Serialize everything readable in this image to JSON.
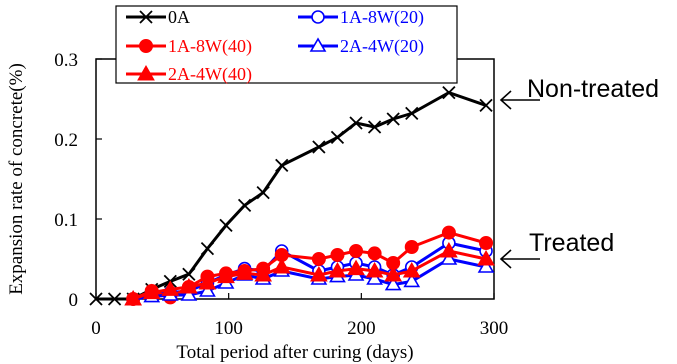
{
  "chart_data": {
    "type": "line",
    "title": "",
    "xlabel": "Total period after curing (days)",
    "ylabel": "Expansion rate of concrete(%)",
    "xlim": [
      0,
      300
    ],
    "ylim": [
      0,
      0.3
    ],
    "xticks": [
      0,
      100,
      200,
      300
    ],
    "xtick_labels": [
      "0",
      "100",
      "200",
      "300"
    ],
    "yticks": [
      0,
      0.1,
      0.2,
      0.3
    ],
    "ytick_labels": [
      "0",
      "0.1",
      "0.2",
      "0.3"
    ],
    "grid": false,
    "legend_position": "top-inside",
    "series": [
      {
        "name": "0A",
        "color": "#000000",
        "marker": "x",
        "x": [
          0,
          14,
          28,
          42,
          56,
          70,
          84,
          98,
          112,
          126,
          140,
          168,
          182,
          196,
          210,
          224,
          238,
          266,
          294
        ],
        "y": [
          0,
          0,
          0,
          0.012,
          0.022,
          0.031,
          0.063,
          0.092,
          0.117,
          0.133,
          0.167,
          0.19,
          0.202,
          0.22,
          0.215,
          0.225,
          0.232,
          0.258,
          0.242
        ]
      },
      {
        "name": "1A-8W(20)",
        "color": "#0000ff",
        "marker": "circle-open",
        "x": [
          28,
          42,
          56,
          70,
          84,
          98,
          112,
          126,
          140,
          168,
          182,
          196,
          210,
          224,
          238,
          266,
          294
        ],
        "y": [
          0,
          0.005,
          0.008,
          0.01,
          0.02,
          0.03,
          0.038,
          0.035,
          0.06,
          0.035,
          0.04,
          0.045,
          0.04,
          0.03,
          0.04,
          0.07,
          0.06
        ]
      },
      {
        "name": "1A-8W(40)",
        "color": "#ff0000",
        "marker": "circle-filled",
        "x": [
          28,
          42,
          56,
          70,
          84,
          98,
          112,
          126,
          140,
          168,
          182,
          196,
          210,
          224,
          238,
          266,
          294
        ],
        "y": [
          0,
          0.01,
          0.002,
          0.015,
          0.028,
          0.032,
          0.035,
          0.038,
          0.055,
          0.05,
          0.055,
          0.06,
          0.057,
          0.045,
          0.065,
          0.083,
          0.07
        ]
      },
      {
        "name": "2A-4W(20)",
        "color": "#0000ff",
        "marker": "triangle-open",
        "x": [
          28,
          42,
          56,
          70,
          84,
          98,
          112,
          126,
          140,
          168,
          182,
          196,
          210,
          224,
          238,
          266,
          294
        ],
        "y": [
          0,
          0.003,
          0.005,
          0.005,
          0.01,
          0.02,
          0.03,
          0.025,
          0.035,
          0.025,
          0.028,
          0.03,
          0.025,
          0.018,
          0.022,
          0.05,
          0.04
        ]
      },
      {
        "name": "2A-4W(40)",
        "color": "#ff0000",
        "marker": "triangle-filled",
        "x": [
          28,
          42,
          56,
          70,
          84,
          98,
          112,
          126,
          140,
          168,
          182,
          196,
          210,
          224,
          238,
          266,
          294
        ],
        "y": [
          0,
          0.008,
          0.012,
          0.015,
          0.02,
          0.028,
          0.032,
          0.03,
          0.04,
          0.03,
          0.035,
          0.038,
          0.035,
          0.03,
          0.035,
          0.06,
          0.05
        ]
      }
    ],
    "annotations": [
      {
        "text": "Non-treated",
        "points_to": "0A"
      },
      {
        "text": "Treated",
        "points_to": "treated-series"
      }
    ]
  }
}
